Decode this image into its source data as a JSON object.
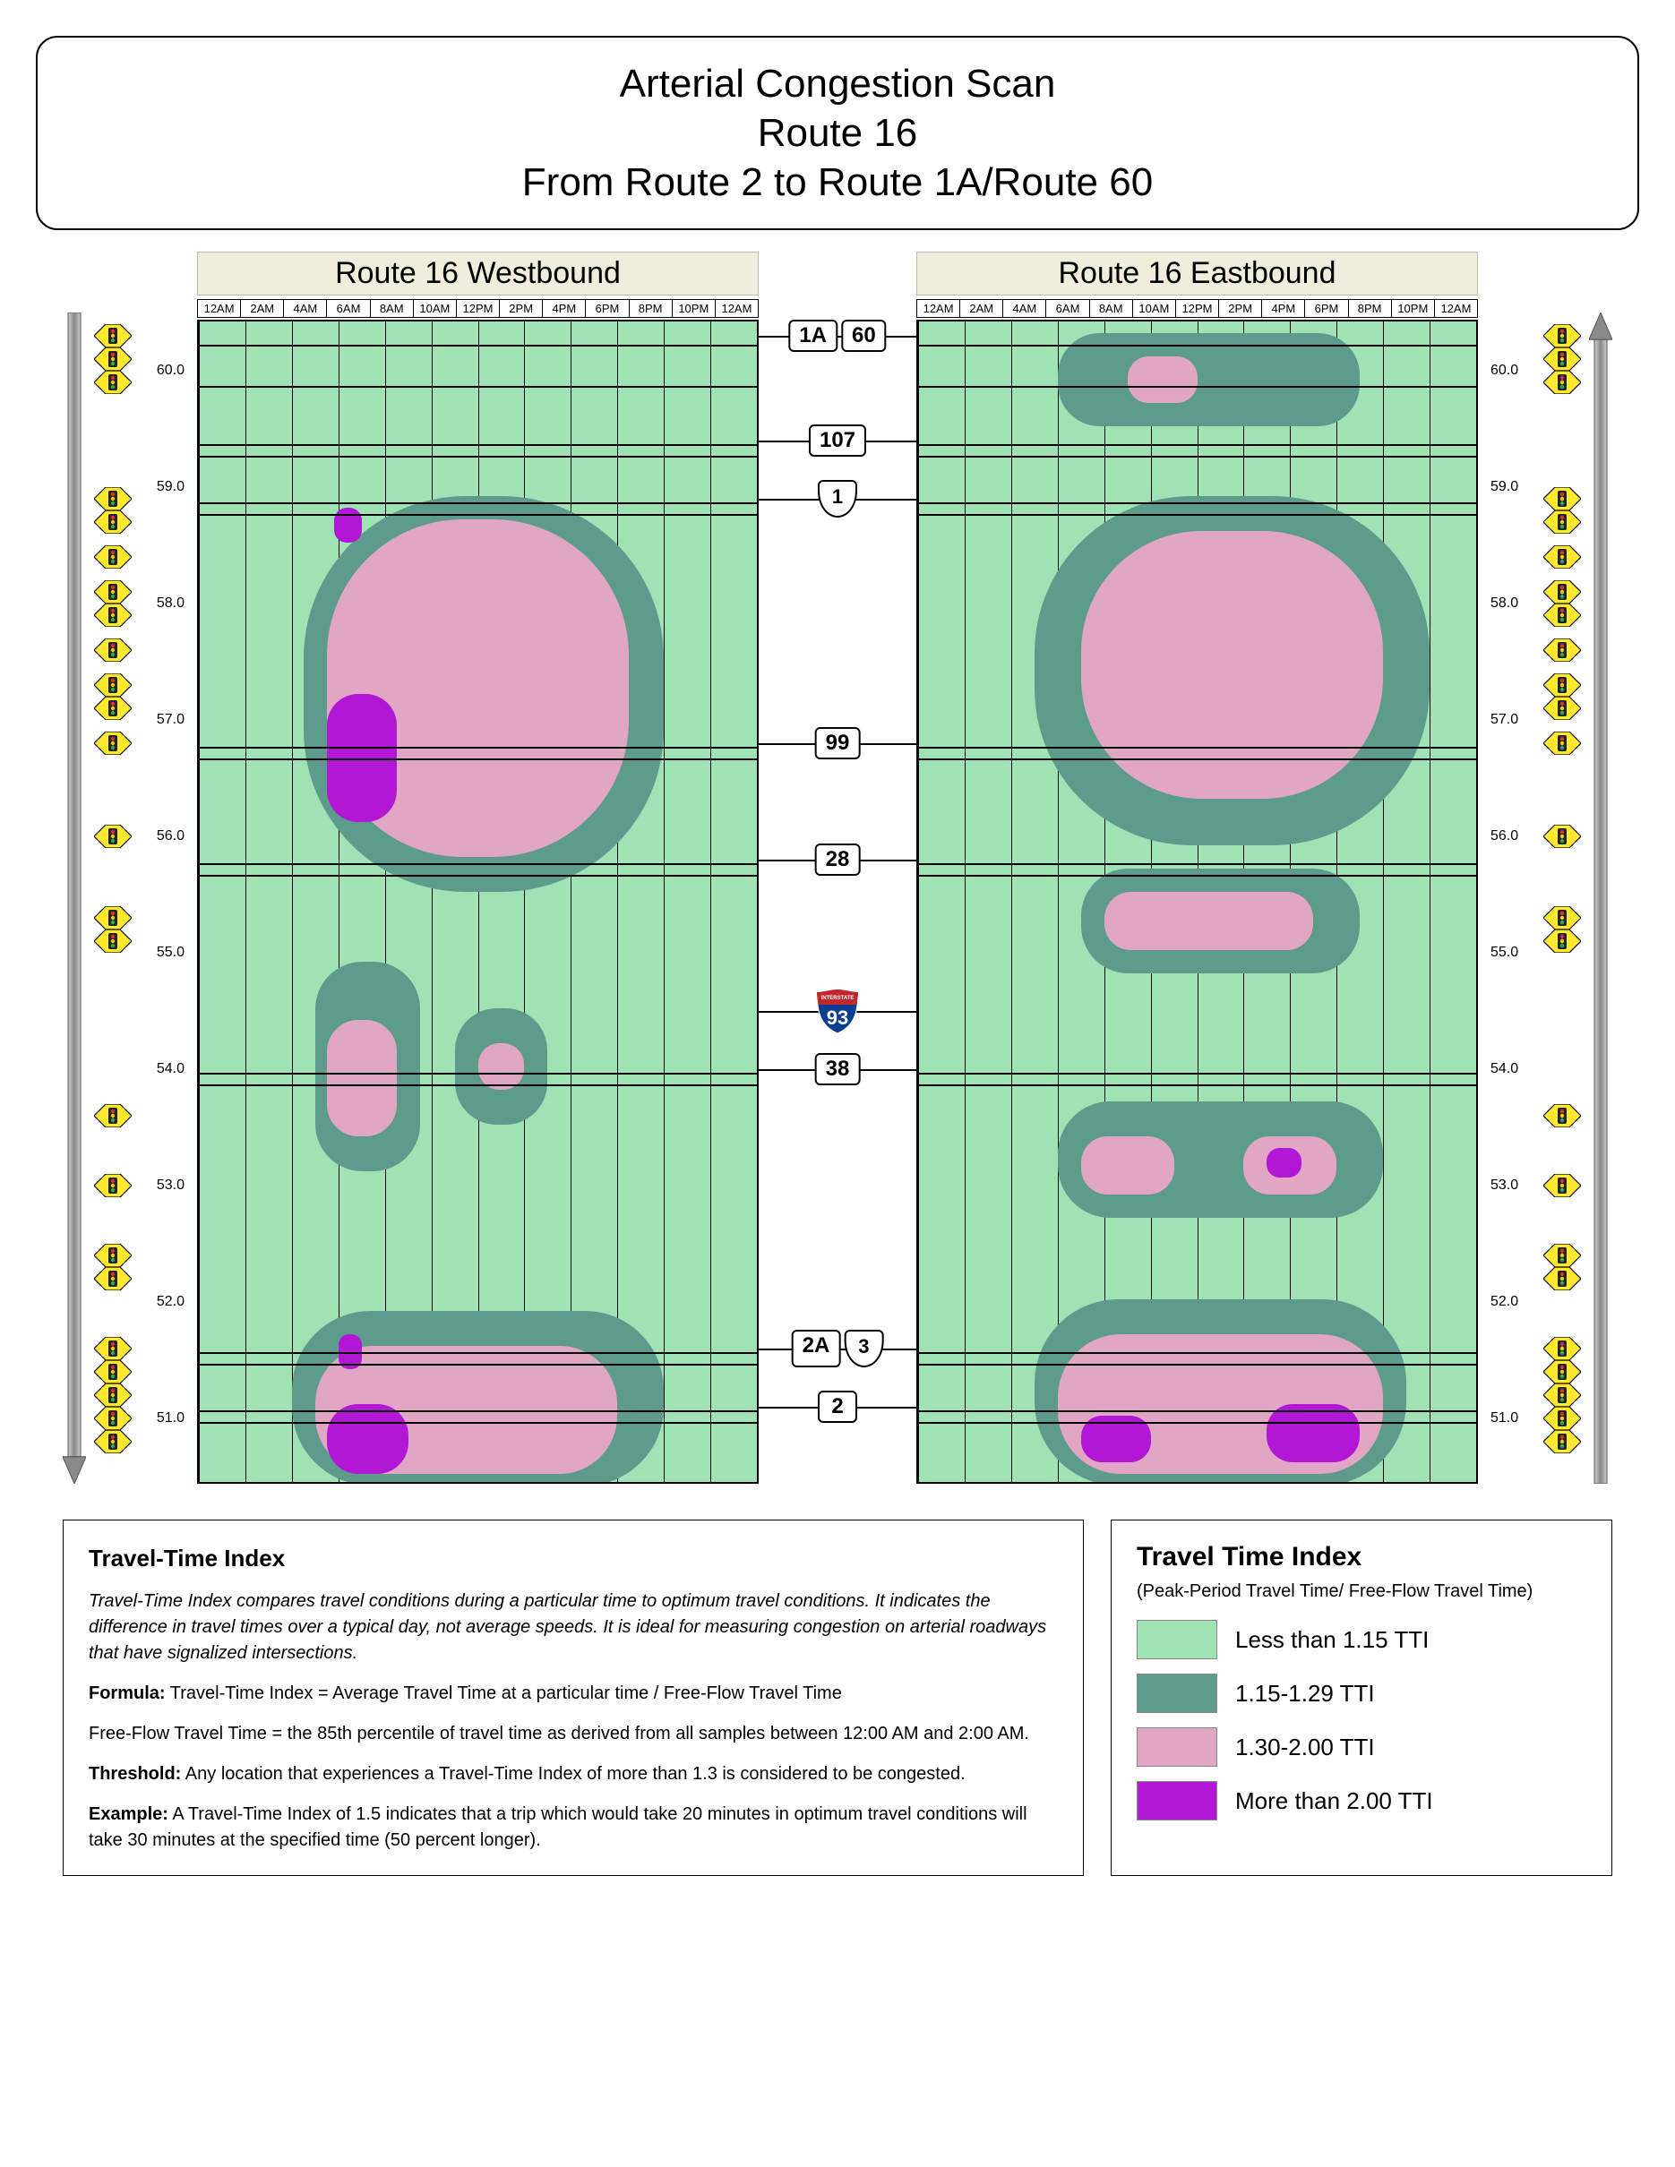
{
  "title": {
    "l1": "Arterial Congestion Scan",
    "l2": "Route 16",
    "l3": "From Route 2 to Route 1A/Route 60"
  },
  "time_labels": [
    "12AM",
    "2AM",
    "4AM",
    "6AM",
    "8AM",
    "10AM",
    "12PM",
    "2PM",
    "4PM",
    "6PM",
    "8PM",
    "10PM",
    "12AM"
  ],
  "mp": {
    "min": 50.5,
    "max": 60.5
  },
  "axis_ticks": [
    51.0,
    52.0,
    53.0,
    54.0,
    55.0,
    56.0,
    57.0,
    58.0,
    59.0,
    60.0
  ],
  "colors": {
    "c1": "#9fe3b4",
    "c2": "#5d9b8d",
    "c3": "#e0a6c4",
    "c4": "#b217d6",
    "grid": "#000000",
    "bg": "#ffffff",
    "title_bg": "#eeeedd"
  },
  "west": {
    "title": "Route 16 Westbound"
  },
  "east": {
    "title": "Route 16 Eastbound"
  },
  "cross_routes": [
    {
      "mp": 60.3,
      "labels": [
        "1A",
        "60"
      ],
      "style": [
        "box",
        "box"
      ]
    },
    {
      "mp": 59.4,
      "labels": [
        "107"
      ],
      "style": [
        "box"
      ]
    },
    {
      "mp": 58.9,
      "labels": [
        "1"
      ],
      "style": [
        "us"
      ]
    },
    {
      "mp": 56.8,
      "labels": [
        "99"
      ],
      "style": [
        "box"
      ]
    },
    {
      "mp": 55.8,
      "labels": [
        "28"
      ],
      "style": [
        "box"
      ]
    },
    {
      "mp": 54.5,
      "labels": [
        "93"
      ],
      "style": [
        "interstate"
      ]
    },
    {
      "mp": 54.0,
      "labels": [
        "38"
      ],
      "style": [
        "box"
      ]
    },
    {
      "mp": 51.6,
      "labels": [
        "2A",
        "3"
      ],
      "style": [
        "box",
        "us"
      ]
    },
    {
      "mp": 51.1,
      "labels": [
        "2"
      ],
      "style": [
        "box"
      ]
    }
  ],
  "hlines_west": [
    60.3,
    59.95,
    59.45,
    59.35,
    58.95,
    58.85,
    56.85,
    56.75,
    55.85,
    55.75,
    54.05,
    53.95,
    51.65,
    51.55,
    51.15,
    51.05
  ],
  "hlines_east": [
    60.3,
    59.95,
    59.45,
    59.35,
    58.95,
    58.85,
    56.85,
    56.75,
    55.85,
    55.75,
    54.05,
    53.95,
    51.65,
    51.55,
    51.15,
    51.05
  ],
  "signals_left": [
    60.3,
    60.1,
    59.9,
    58.9,
    58.7,
    58.4,
    58.1,
    57.9,
    57.6,
    57.3,
    57.1,
    56.8,
    56.0,
    55.3,
    55.1,
    53.6,
    53.0,
    52.4,
    52.2,
    51.6,
    51.4,
    51.2,
    51.0,
    50.8
  ],
  "signals_right": [
    60.3,
    60.1,
    59.9,
    58.9,
    58.7,
    58.4,
    58.1,
    57.9,
    57.6,
    57.3,
    57.1,
    56.8,
    56.0,
    55.3,
    55.1,
    53.6,
    53.0,
    52.4,
    52.2,
    51.6,
    51.4,
    51.2,
    51.0,
    50.8
  ],
  "west_blobs": [
    {
      "lvl": 2,
      "t0": 4.5,
      "t1": 20,
      "m0": 55.6,
      "m1": 59.0
    },
    {
      "lvl": 3,
      "t0": 5.5,
      "t1": 18.5,
      "m0": 55.9,
      "m1": 58.8
    },
    {
      "lvl": 2,
      "t0": 5,
      "t1": 9.5,
      "m0": 53.2,
      "m1": 55.0
    },
    {
      "lvl": 3,
      "t0": 5.5,
      "t1": 8.5,
      "m0": 53.5,
      "m1": 54.5
    },
    {
      "lvl": 2,
      "t0": 11,
      "t1": 15,
      "m0": 53.6,
      "m1": 54.6
    },
    {
      "lvl": 3,
      "t0": 12,
      "t1": 14,
      "m0": 53.9,
      "m1": 54.3
    },
    {
      "lvl": 2,
      "t0": 4,
      "t1": 20,
      "m0": 50.5,
      "m1": 52.0
    },
    {
      "lvl": 3,
      "t0": 5,
      "t1": 18,
      "m0": 50.6,
      "m1": 51.7
    },
    {
      "lvl": 4,
      "t0": 5.5,
      "t1": 8.5,
      "m0": 56.2,
      "m1": 57.3
    },
    {
      "lvl": 4,
      "t0": 5.8,
      "t1": 7,
      "m0": 58.6,
      "m1": 58.9
    },
    {
      "lvl": 4,
      "t0": 6,
      "t1": 7,
      "m0": 51.5,
      "m1": 51.8
    },
    {
      "lvl": 4,
      "t0": 5.5,
      "t1": 9,
      "m0": 50.6,
      "m1": 51.2
    }
  ],
  "east_blobs": [
    {
      "lvl": 2,
      "t0": 5,
      "t1": 22,
      "m0": 56.0,
      "m1": 59.0
    },
    {
      "lvl": 3,
      "t0": 7,
      "t1": 20,
      "m0": 56.4,
      "m1": 58.7
    },
    {
      "lvl": 2,
      "t0": 7,
      "t1": 19,
      "m0": 54.9,
      "m1": 55.8
    },
    {
      "lvl": 3,
      "t0": 8,
      "t1": 17,
      "m0": 55.1,
      "m1": 55.6
    },
    {
      "lvl": 2,
      "t0": 6,
      "t1": 20,
      "m0": 52.8,
      "m1": 53.8
    },
    {
      "lvl": 3,
      "t0": 7,
      "t1": 11,
      "m0": 53.0,
      "m1": 53.5
    },
    {
      "lvl": 3,
      "t0": 14,
      "t1": 18,
      "m0": 53.0,
      "m1": 53.5
    },
    {
      "lvl": 4,
      "t0": 15,
      "t1": 16.5,
      "m0": 53.15,
      "m1": 53.4
    },
    {
      "lvl": 2,
      "t0": 5,
      "t1": 21,
      "m0": 50.5,
      "m1": 52.1
    },
    {
      "lvl": 3,
      "t0": 6,
      "t1": 20,
      "m0": 50.6,
      "m1": 51.8
    },
    {
      "lvl": 4,
      "t0": 7,
      "t1": 10,
      "m0": 50.7,
      "m1": 51.1
    },
    {
      "lvl": 4,
      "t0": 15,
      "t1": 19,
      "m0": 50.7,
      "m1": 51.2
    },
    {
      "lvl": 2,
      "t0": 6,
      "t1": 19,
      "m0": 59.6,
      "m1": 60.4
    },
    {
      "lvl": 3,
      "t0": 9,
      "t1": 12,
      "m0": 59.8,
      "m1": 60.2
    }
  ],
  "desc": {
    "heading": "Travel-Time Index",
    "p1": "Travel-Time Index compares travel conditions during a particular time to optimum travel conditions. It indicates the difference in travel times over a typical day, not average speeds. It is ideal for measuring congestion on arterial roadways that have signalized intersections.",
    "formula_label": "Formula:",
    "formula": " Travel-Time Index = Average Travel Time at a particular time / Free-Flow Travel Time",
    "fft": "Free-Flow Travel Time = the 85th percentile of travel time as derived from all samples between 12:00 AM and 2:00 AM.",
    "thresh_label": "Threshold:",
    "thresh": " Any location that experiences a Travel-Time Index of more than 1.3 is considered to be congested.",
    "ex_label": "Example:",
    "ex": " A Travel-Time Index of 1.5 indicates that a trip which would take 20 minutes in optimum travel conditions will take 30 minutes at the specified time (50 percent longer)."
  },
  "legend": {
    "heading": "Travel Time Index",
    "sub": "(Peak-Period Travel Time/ Free-Flow Travel Time)",
    "items": [
      {
        "label": "Less than 1.15 TTI",
        "color": "#9fe3b4"
      },
      {
        "label": "1.15-1.29 TTI",
        "color": "#5d9b8d"
      },
      {
        "label": "1.30-2.00 TTI",
        "color": "#e0a6c4"
      },
      {
        "label": "More than 2.00 TTI",
        "color": "#b217d6"
      }
    ]
  }
}
